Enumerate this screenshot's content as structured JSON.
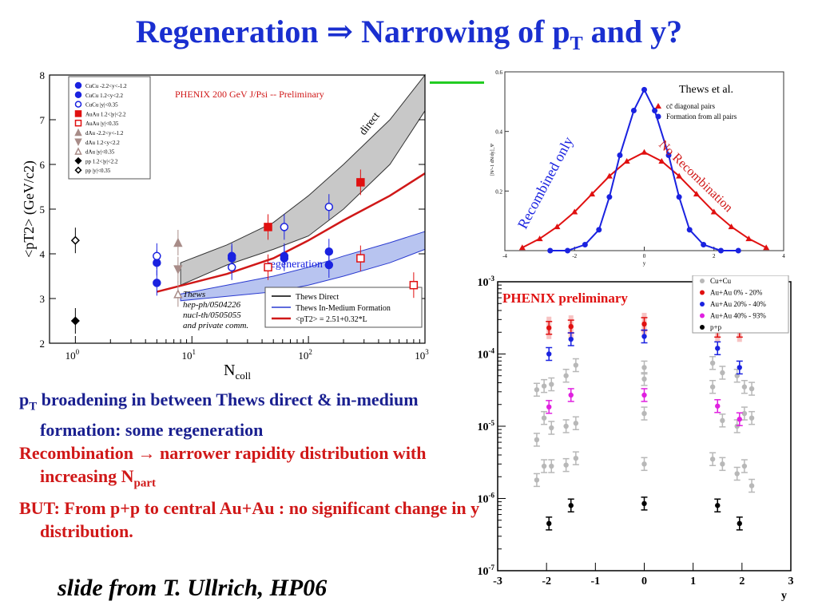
{
  "slide": {
    "title_main": "Regeneration ⇒ Narrowing of p",
    "title_sub": "T",
    "title_end": " and y?",
    "bullets": [
      {
        "pre": "p",
        "sub": "T",
        "post": " broadening in between Thews direct & in-medium formation: some regeneration",
        "color": "#1a2090"
      },
      {
        "pre": "Recombination → narrower rapidity distribution with increasing N",
        "sub": "part",
        "post": "",
        "color": "#d01818"
      },
      {
        "pre": "BUT: From p+p to central Au+Au : no significant change in y distribution.",
        "sub": "",
        "post": "",
        "color": "#d01818"
      }
    ],
    "credit": "slide from T. Ullrich, HP06"
  },
  "chart_data": [
    {
      "type": "scatter",
      "title": "PHENIX 200 GeV J/Psi -- Preliminary",
      "xlabel": "N_coll",
      "ylabel": "<p_T^2> (GeV/c^2)",
      "xscale": "log",
      "xlim": [
        0.6,
        1000
      ],
      "ylim": [
        2,
        8
      ],
      "xticks": [
        "10^0",
        "10^1",
        "10^2",
        "10^3"
      ],
      "yticks": [
        "2",
        "3",
        "4",
        "5",
        "6",
        "7",
        "8"
      ],
      "band_labels": [
        "direct",
        "regeneration"
      ],
      "note": [
        "Thews",
        "hep-ph/0504226",
        "nucl-th/0505055",
        "and private comm."
      ],
      "legend": [
        "Thews Direct",
        "Thews In-Medium Formation",
        "<pT2> = 2.51+0.32*L"
      ],
      "series": [
        {
          "name": "CuCu -2.2<y<-1.2",
          "marker": "filled-circle",
          "color": "#1a22e0",
          "points": [
            [
              5,
              3.8
            ],
            [
              22,
              3.95
            ],
            [
              62,
              3.95
            ],
            [
              150,
              4.05
            ]
          ]
        },
        {
          "name": "CuCu 1.2<y<2.2",
          "marker": "filled-circle",
          "color": "#1a22e0",
          "points": [
            [
              5,
              3.35
            ],
            [
              22,
              3.9
            ],
            [
              62,
              3.9
            ],
            [
              150,
              3.75
            ]
          ]
        },
        {
          "name": "CuCu |y|<0.35",
          "marker": "open-circle",
          "color": "#1a22e0",
          "points": [
            [
              5,
              3.95
            ],
            [
              22,
              3.7
            ],
            [
              62,
              4.6
            ],
            [
              150,
              5.05
            ]
          ]
        },
        {
          "name": "AuAu 1.2<|y|<2.2",
          "marker": "filled-square",
          "color": "#e01010",
          "points": [
            [
              45,
              4.6
            ],
            [
              280,
              5.6
            ]
          ]
        },
        {
          "name": "AuAu |y|<0.35",
          "marker": "open-square",
          "color": "#e01010",
          "points": [
            [
              45,
              3.7
            ],
            [
              280,
              3.9
            ],
            [
              800,
              3.3
            ]
          ]
        },
        {
          "name": "dAu -2.2<y<-1.2",
          "marker": "filled-triangle-up",
          "color": "#a88c88",
          "points": [
            [
              7.6,
              4.25
            ]
          ]
        },
        {
          "name": "dAu 1.2<y<2.2",
          "marker": "filled-triangle-down",
          "color": "#a88c88",
          "points": [
            [
              7.6,
              3.65
            ]
          ]
        },
        {
          "name": "dAu |y|<0.35",
          "marker": "open-triangle-up",
          "color": "#a88c88",
          "points": [
            [
              7.6,
              3.1
            ]
          ]
        },
        {
          "name": "pp 1.2<|y|<2.2",
          "marker": "filled-diamond",
          "color": "#000000",
          "points": [
            [
              1,
              2.5
            ]
          ]
        },
        {
          "name": "pp |y|<0.35",
          "marker": "open-diamond",
          "color": "#000000",
          "points": [
            [
              1,
              4.3
            ]
          ]
        }
      ],
      "fit_line": {
        "name": "<pT2> = 2.51+0.32*L",
        "color": "#d01818",
        "x": [
          5,
          20,
          50,
          100,
          200,
          500,
          1000
        ],
        "y": [
          3.15,
          3.55,
          3.9,
          4.3,
          4.75,
          5.3,
          5.8
        ]
      },
      "direct_band": {
        "x": [
          8,
          20,
          50,
          100,
          200,
          500,
          1000
        ],
        "lower": [
          3.3,
          3.75,
          4.1,
          4.4,
          5.0,
          6.0,
          7.2
        ],
        "upper": [
          3.8,
          4.2,
          4.7,
          5.3,
          6.0,
          7.0,
          8.0
        ]
      },
      "regen_band": {
        "x": [
          8,
          20,
          50,
          100,
          200,
          500,
          1000
        ],
        "lower": [
          2.95,
          3.05,
          3.15,
          3.3,
          3.5,
          3.8,
          4.1
        ],
        "upper": [
          3.1,
          3.3,
          3.5,
          3.7,
          3.95,
          4.25,
          4.5
        ]
      }
    },
    {
      "type": "line",
      "title_label": "Thews et al.",
      "ylabel": "[N^-1 dN/dy]_Ψ",
      "xlabel": "y",
      "xlim": [
        -4,
        4
      ],
      "ylim": [
        0,
        0.6
      ],
      "xticks": [
        "-4",
        "-2",
        "0",
        "2",
        "4"
      ],
      "yticks": [
        "0.2",
        "0.4",
        "0.6"
      ],
      "curve_labels": [
        "Recombined only",
        "No Recombination"
      ],
      "legend": [
        "cc̄ diagonal pairs",
        "Formation from all pairs"
      ],
      "series": [
        {
          "name": "cc̄ diagonal pairs",
          "color": "#e01010",
          "marker": "triangle",
          "x": [
            -3.5,
            -3,
            -2.5,
            -2,
            -1.5,
            -1,
            -0.5,
            0,
            0.5,
            1,
            1.5,
            2,
            2.5,
            3,
            3.5
          ],
          "y": [
            0.01,
            0.04,
            0.08,
            0.13,
            0.19,
            0.25,
            0.3,
            0.33,
            0.3,
            0.25,
            0.19,
            0.13,
            0.08,
            0.04,
            0.01
          ]
        },
        {
          "name": "Formation from all pairs",
          "color": "#1a22e0",
          "marker": "circle",
          "x": [
            -2.7,
            -2.2,
            -1.7,
            -1.3,
            -1,
            -0.7,
            -0.3,
            0,
            0.3,
            0.7,
            1,
            1.3,
            1.7,
            2.2,
            2.7
          ],
          "y": [
            0.0,
            0.0,
            0.02,
            0.07,
            0.18,
            0.32,
            0.47,
            0.54,
            0.47,
            0.32,
            0.18,
            0.07,
            0.02,
            0.0,
            0.0
          ]
        }
      ]
    },
    {
      "type": "scatter",
      "title": "PHENIX preliminary",
      "xlabel": "y",
      "yscale": "log",
      "xlim": [
        -3,
        3
      ],
      "ylim": [
        1e-07,
        0.001
      ],
      "xticks": [
        "-3",
        "-2",
        "-1",
        "0",
        "1",
        "2",
        "3"
      ],
      "yticks": [
        "10^-7",
        "10^-6",
        "10^-5",
        "10^-4",
        "10^-3"
      ],
      "series": [
        {
          "name": "Cu+Cu",
          "color": "#b8b8b8",
          "points": [
            [
              -2.2,
              3.2e-05
            ],
            [
              -2.05,
              3.6e-05
            ],
            [
              -1.9,
              3.8e-05
            ],
            [
              -1.6,
              5e-05
            ],
            [
              -1.4,
              7e-05
            ],
            [
              -2.2,
              6.5e-06
            ],
            [
              -2.05,
              1.3e-05
            ],
            [
              -1.9,
              9.5e-06
            ],
            [
              -1.6,
              1e-05
            ],
            [
              -1.4,
              1.1e-05
            ],
            [
              -2.2,
              1.8e-06
            ],
            [
              -2.05,
              2.8e-06
            ],
            [
              -1.9,
              2.8e-06
            ],
            [
              -1.6,
              2.9e-06
            ],
            [
              -1.4,
              3.6e-06
            ],
            [
              0,
              6.5e-05
            ],
            [
              0,
              4.5e-05
            ],
            [
              0,
              1.5e-05
            ],
            [
              0,
              3e-06
            ],
            [
              1.4,
              7.5e-05
            ],
            [
              1.6,
              5.5e-05
            ],
            [
              1.9,
              5e-05
            ],
            [
              2.05,
              3.5e-05
            ],
            [
              2.2,
              3.3e-05
            ],
            [
              1.4,
              3.5e-05
            ],
            [
              1.6,
              1.2e-05
            ],
            [
              1.9,
              1e-05
            ],
            [
              2.05,
              1.5e-05
            ],
            [
              2.2,
              1.3e-05
            ],
            [
              1.4,
              3.5e-06
            ],
            [
              1.6,
              3e-06
            ],
            [
              1.9,
              2.2e-06
            ],
            [
              2.05,
              2.8e-06
            ],
            [
              2.2,
              1.5e-06
            ]
          ]
        },
        {
          "name": "Au+Au 0% - 20%",
          "color": "#e01010",
          "points": [
            [
              -1.95,
              0.00023
            ],
            [
              -1.5,
              0.00024
            ],
            [
              0,
              0.00026
            ],
            [
              1.5,
              0.00021
            ],
            [
              1.95,
              0.00021
            ]
          ]
        },
        {
          "name": "Au+Au 20% - 40%",
          "color": "#1a22e0",
          "points": [
            [
              -1.95,
              0.0001
            ],
            [
              -1.5,
              0.00016
            ],
            [
              0,
              0.000175
            ],
            [
              1.5,
              0.00012
            ],
            [
              1.95,
              6.5e-05
            ]
          ]
        },
        {
          "name": "Au+Au 40% - 93%",
          "color": "#e020e0",
          "points": [
            [
              -1.95,
              1.85e-05
            ],
            [
              -1.5,
              2.7e-05
            ],
            [
              0,
              2.7e-05
            ],
            [
              1.5,
              1.9e-05
            ],
            [
              1.95,
              1.25e-05
            ]
          ]
        },
        {
          "name": "p+p",
          "color": "#000000",
          "points": [
            [
              -1.95,
              4.5e-07
            ],
            [
              -1.5,
              8e-07
            ],
            [
              0,
              8.5e-07
            ],
            [
              1.5,
              8e-07
            ],
            [
              1.95,
              4.5e-07
            ]
          ]
        }
      ]
    }
  ]
}
